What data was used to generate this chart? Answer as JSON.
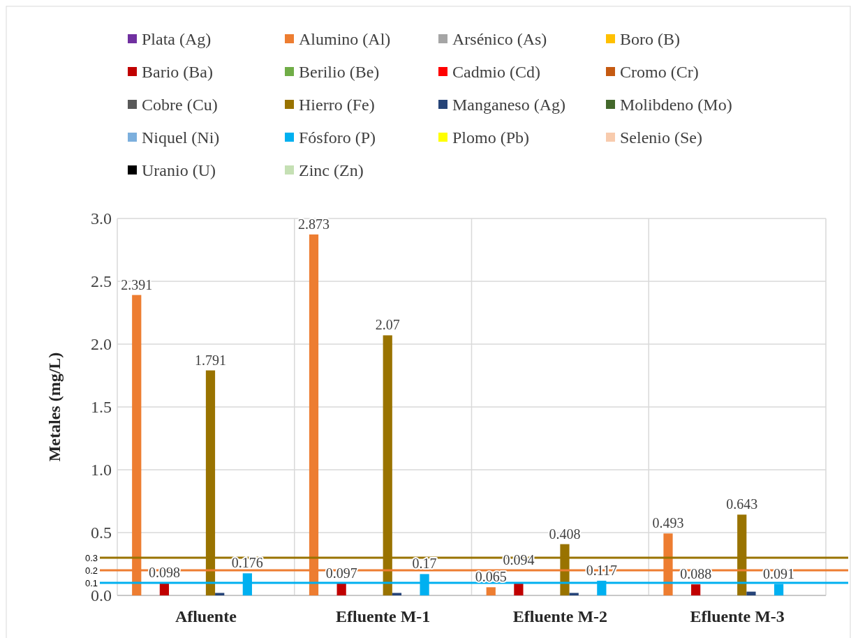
{
  "chart_data": {
    "type": "bar",
    "ylabel": "Metales (mg/L)",
    "categories": [
      "Afluente",
      "Efluente M-1",
      "Efluente M-2",
      "Efluente M-3"
    ],
    "ylim": [
      0,
      3
    ],
    "yticks": [
      {
        "value": 0,
        "label": "0.0"
      },
      {
        "value": 0.5,
        "label": "0.5"
      },
      {
        "value": 1,
        "label": "1.0"
      },
      {
        "value": 1.5,
        "label": "1.5"
      },
      {
        "value": 2,
        "label": "2.0"
      },
      {
        "value": 2.5,
        "label": "2.5"
      },
      {
        "value": 3,
        "label": "3.0"
      }
    ],
    "grid": true,
    "legend": "top",
    "series": [
      {
        "name": "Plata (Ag)",
        "color": "#7030a0",
        "values": [
          0,
          0,
          0,
          0
        ]
      },
      {
        "name": "Alumino (Al)",
        "color": "#ed7d31",
        "values": [
          2.391,
          2.873,
          0.065,
          0.493
        ],
        "value_labels": [
          "2.391",
          "2.873",
          "0.065",
          "0.493"
        ]
      },
      {
        "name": "Arsénico (As)",
        "color": "#a5a5a5",
        "values": [
          0,
          0,
          0,
          0
        ]
      },
      {
        "name": "Boro (B)",
        "color": "#ffc000",
        "values": [
          0,
          0,
          0,
          0
        ]
      },
      {
        "name": "Bario (Ba)",
        "color": "#c00000",
        "values": [
          0.098,
          0.097,
          0.094,
          0.088
        ],
        "value_labels": [
          "0.098",
          "0.097",
          "0.094",
          "0.088"
        ]
      },
      {
        "name": "Berilio (Be)",
        "color": "#70ad47",
        "values": [
          0,
          0,
          0,
          0
        ]
      },
      {
        "name": "Cadmio (Cd)",
        "color": "#ff0000",
        "values": [
          0,
          0,
          0,
          0
        ]
      },
      {
        "name": "Cromo (Cr)",
        "color": "#c55a11",
        "values": [
          0,
          0,
          0,
          0
        ]
      },
      {
        "name": "Cobre (Cu)",
        "color": "#595959",
        "values": [
          0,
          0,
          0,
          0
        ]
      },
      {
        "name": "Hierro (Fe)",
        "color": "#997300",
        "values": [
          1.791,
          2.07,
          0.408,
          0.643
        ],
        "value_labels": [
          "1.791",
          "2.07",
          "0.408",
          "0.643"
        ]
      },
      {
        "name": "Manganeso (Ag)",
        "color": "#264478",
        "values": [
          0.02,
          0.02,
          0.02,
          0.03
        ]
      },
      {
        "name": "Molibdeno (Mo)",
        "color": "#43682b",
        "values": [
          0,
          0,
          0,
          0
        ]
      },
      {
        "name": "Niquel (Ni)",
        "color": "#7cafdd",
        "values": [
          0,
          0,
          0,
          0
        ]
      },
      {
        "name": "Fósforo (P)",
        "color": "#00b0f0",
        "values": [
          0.176,
          0.17,
          0.117,
          0.091
        ],
        "value_labels": [
          "0.176",
          "0.17",
          "0.117",
          "0.091"
        ]
      },
      {
        "name": "Plomo (Pb)",
        "color": "#ffff00",
        "values": [
          0,
          0,
          0,
          0
        ]
      },
      {
        "name": "Selenio (Se)",
        "color": "#f8cbad",
        "values": [
          0,
          0,
          0,
          0
        ]
      },
      {
        "name": "Uranio (U)",
        "color": "#000000",
        "values": [
          0,
          0,
          0,
          0
        ]
      },
      {
        "name": "Zinc (Zn)",
        "color": "#c5e0b4",
        "values": [
          0,
          0,
          0,
          0
        ]
      }
    ],
    "ref_lines": [
      {
        "axis": "y",
        "value": 0.3,
        "label": "0.3",
        "color": "#997300"
      },
      {
        "axis": "y",
        "value": 0.2,
        "label": "0.2",
        "color": "#ed7d31"
      },
      {
        "axis": "y",
        "value": 0.1,
        "label": "0.1",
        "color": "#00b0f0"
      }
    ]
  }
}
